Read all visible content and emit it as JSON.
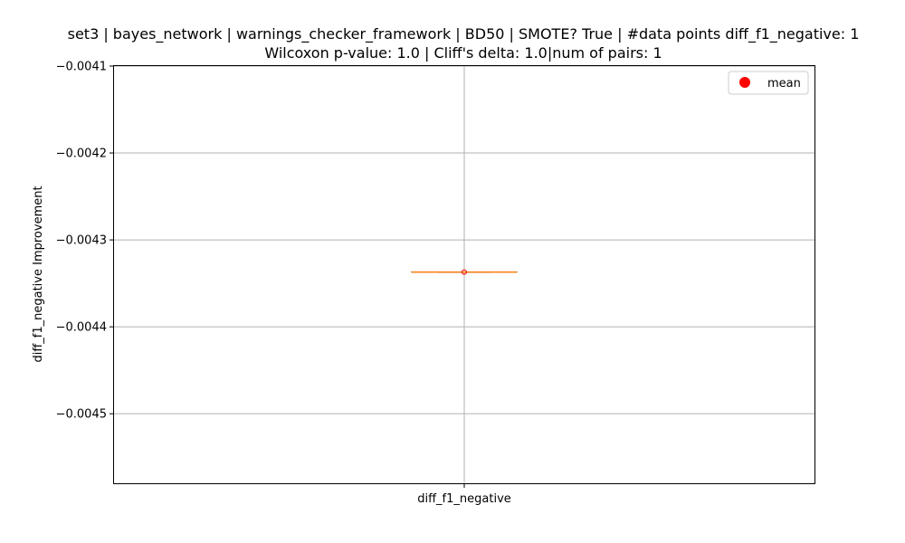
{
  "chart_data": {
    "type": "box",
    "title_line1": "set3 | bayes_network | warnings_checker_framework | BD50 | SMOTE? True | #data points diff_f1_negative: 1",
    "title_line2": "Wilcoxon p-value: 1.0 | Cliff's delta: 1.0|num of pairs: 1",
    "ylabel": "diff_f1_negative Improvement",
    "xlabel": "",
    "categories": [
      "diff_f1_negative"
    ],
    "ylim": [
      -0.00458,
      -0.0041
    ],
    "yticks": [
      -0.0041,
      -0.0042,
      -0.0043,
      -0.0044,
      -0.0045
    ],
    "ytick_labels": [
      "−0.0041",
      "−0.0042",
      "−0.0043",
      "−0.0044",
      "−0.0045"
    ],
    "grid": true,
    "series": [
      {
        "name": "diff_f1_negative",
        "min": -0.004337,
        "q1": -0.004337,
        "median": -0.004337,
        "q3": -0.004337,
        "max": -0.004337,
        "mean": -0.004337
      }
    ],
    "legend": {
      "label": "mean",
      "placement": "top-right",
      "color": "#ff0000"
    },
    "colors": {
      "median": "#ff7f0e",
      "box": "#000000",
      "grid": "#b0b0b0",
      "mean": "#ff0000"
    }
  }
}
